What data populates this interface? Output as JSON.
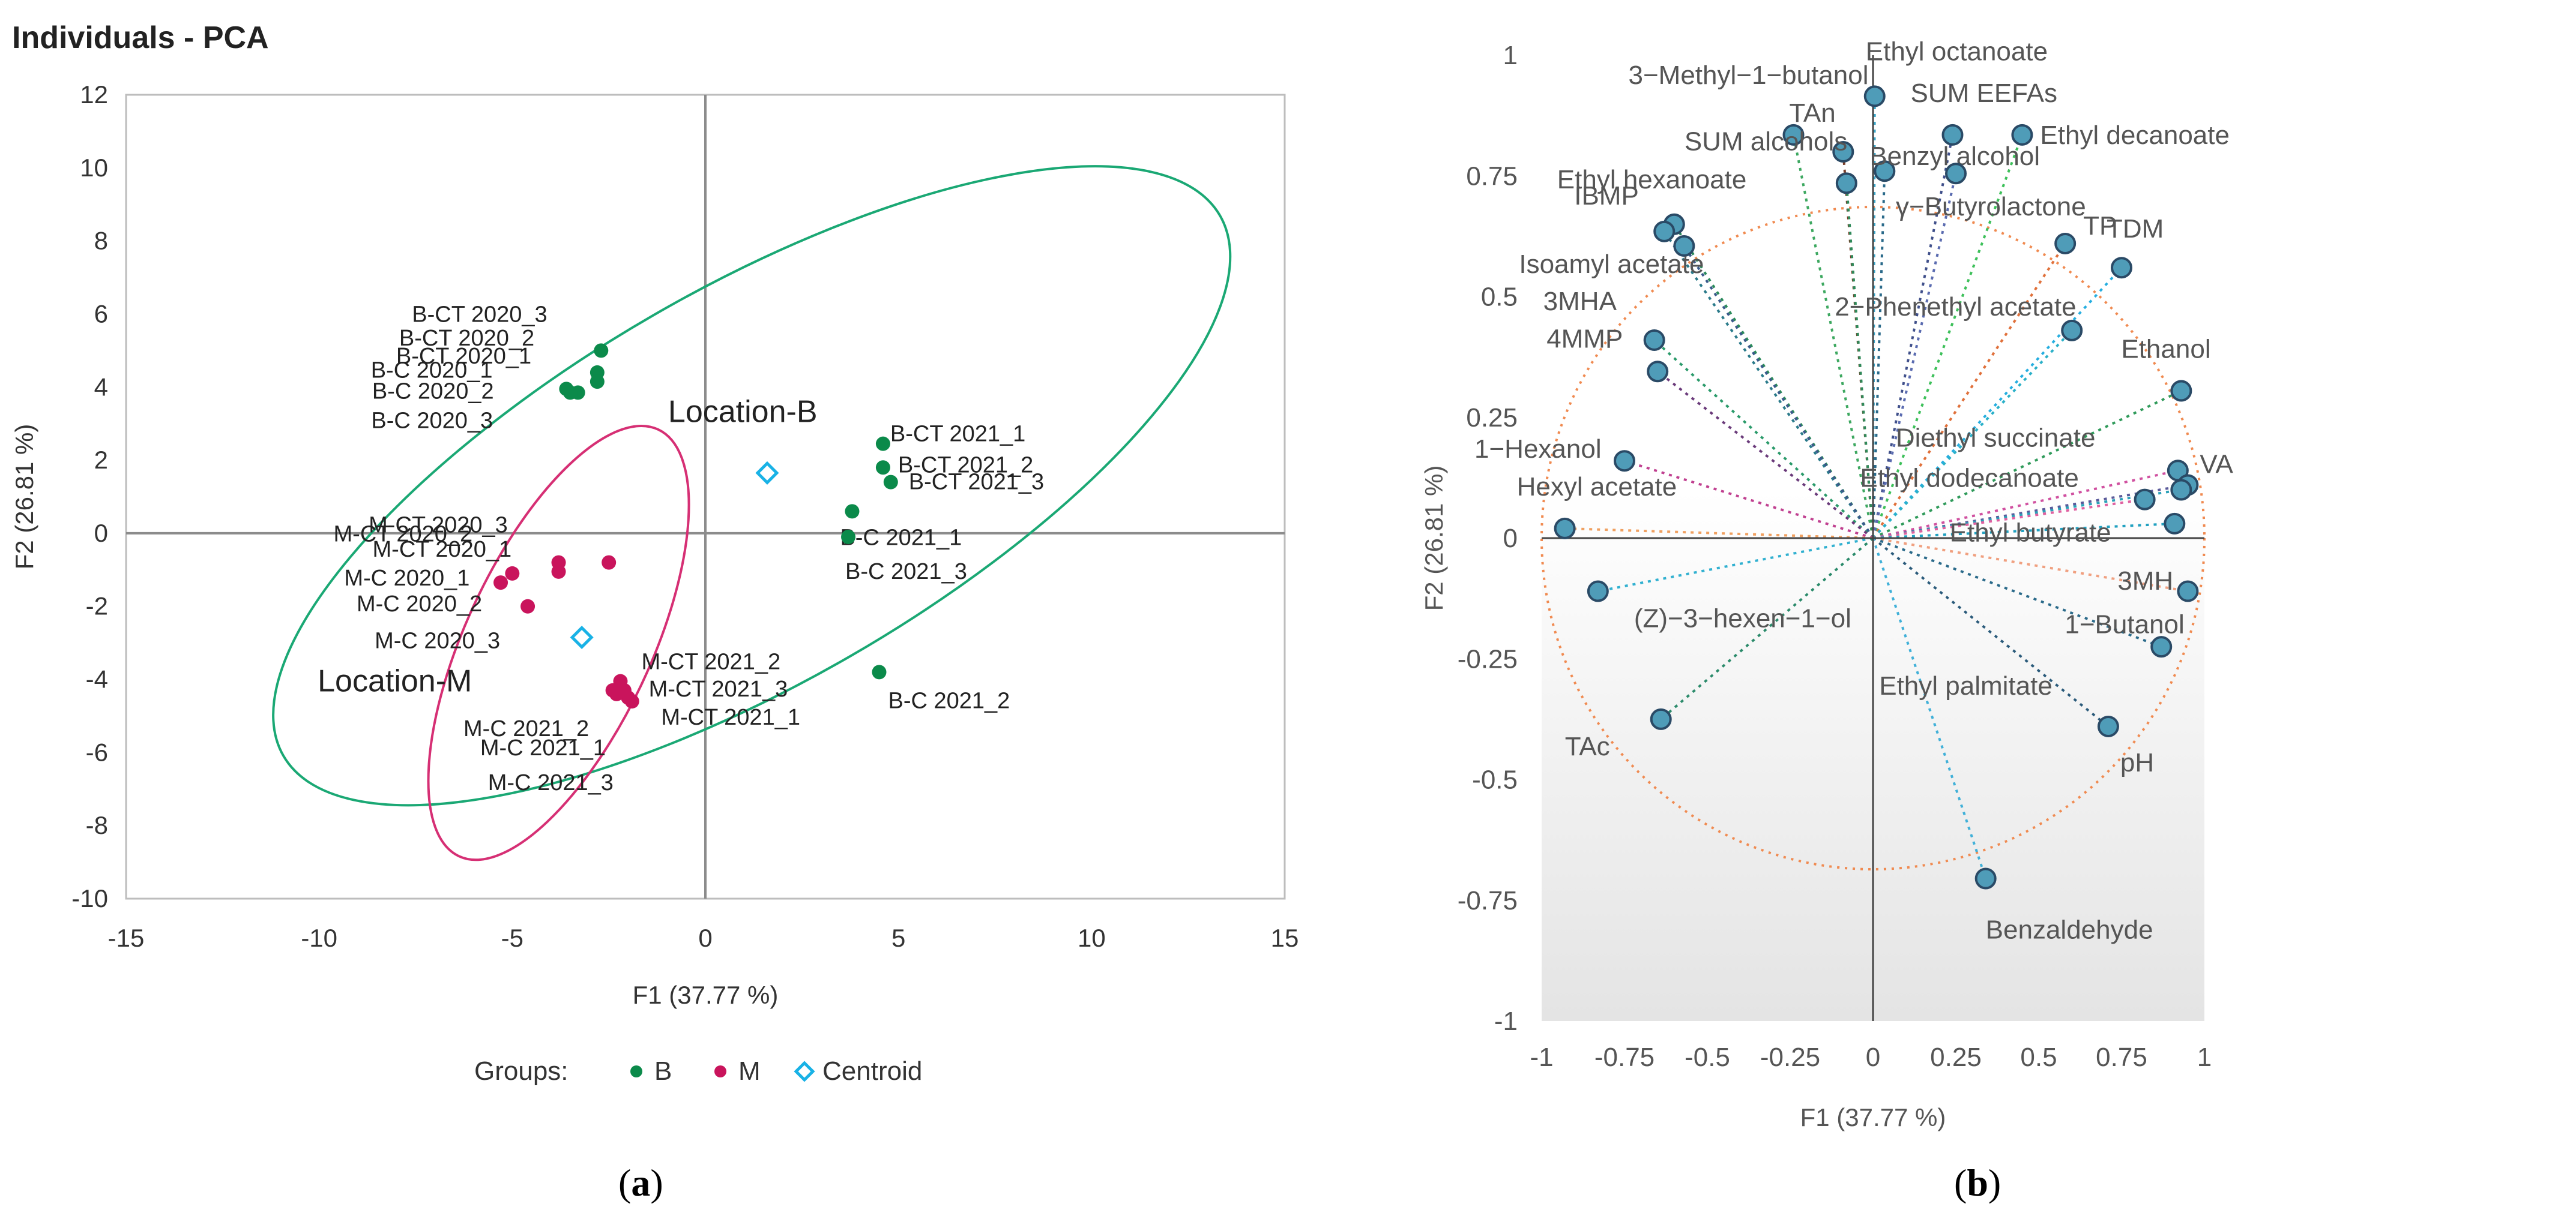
{
  "captions": {
    "a": "a",
    "b": "b"
  },
  "chart_data": [
    {
      "type": "scatter",
      "title": "Individuals - PCA",
      "xlabel": "F1 (37.77 %)",
      "ylabel": "F2 (26.81 %)",
      "xlim": [
        -15,
        15
      ],
      "ylim": [
        -10,
        12
      ],
      "xticks": [
        -15,
        -10,
        -5,
        0,
        5,
        10,
        15
      ],
      "yticks": [
        -10,
        -8,
        -6,
        -4,
        -2,
        0,
        2,
        4,
        6,
        8,
        10,
        12
      ],
      "grid": false,
      "legend": {
        "title": "Groups:",
        "position": "bottom",
        "entries": [
          {
            "name": "B",
            "color": "#0b8a4a",
            "marker": "dot"
          },
          {
            "name": "M",
            "color": "#c9145c",
            "marker": "dot"
          },
          {
            "name": "Centroid",
            "color": "#19b2e6",
            "marker": "diamond"
          }
        ]
      },
      "series": [
        {
          "name": "B",
          "color": "#0b8a4a",
          "points": [
            {
              "label": "B-CT 2020_3",
              "x": -2.7,
              "y": 5.0
            },
            {
              "label": "B-CT 2020_2",
              "x": -2.8,
              "y": 4.4
            },
            {
              "label": "B-CT 2020_1",
              "x": -2.8,
              "y": 4.15
            },
            {
              "label": "B-C 2020_1",
              "x": -3.3,
              "y": 3.85
            },
            {
              "label": "B-C 2020_2",
              "x": -3.5,
              "y": 3.85
            },
            {
              "label": "B-C 2020_3",
              "x": -3.6,
              "y": 3.95
            },
            {
              "label": "B-CT 2021_1",
              "x": 4.6,
              "y": 2.45
            },
            {
              "label": "B-CT 2021_2",
              "x": 4.6,
              "y": 1.8
            },
            {
              "label": "B-CT 2021_3",
              "x": 4.8,
              "y": 1.4
            },
            {
              "label": "B-C 2021_1",
              "x": 3.8,
              "y": 0.6
            },
            {
              "label": "B-C 2021_3",
              "x": 3.7,
              "y": -0.1
            },
            {
              "label": "B-C 2021_2",
              "x": 4.5,
              "y": -3.8
            }
          ]
        },
        {
          "name": "M",
          "color": "#c9145c",
          "points": [
            {
              "label": "M-CT 2020_3",
              "x": -2.5,
              "y": -0.8
            },
            {
              "label": "M-CT 2020_2",
              "x": -3.8,
              "y": -0.8
            },
            {
              "label": "M-CT 2020_1",
              "x": -3.8,
              "y": -1.05
            },
            {
              "label": "M-C 2020_1",
              "x": -5.0,
              "y": -1.1
            },
            {
              "label": "M-C 2020_2",
              "x": -5.3,
              "y": -1.35
            },
            {
              "label": "M-C 2020_3",
              "x": -4.6,
              "y": -2.0
            },
            {
              "label": "M-CT 2021_2",
              "x": -2.2,
              "y": -4.05
            },
            {
              "label": "M-CT 2021_3",
              "x": -2.4,
              "y": -4.3
            },
            {
              "label": "M-CT 2021_1",
              "x": -2.0,
              "y": -4.5
            },
            {
              "label": "M-C 2021_2",
              "x": -2.3,
              "y": -4.4
            },
            {
              "label": "M-C 2021_1",
              "x": -2.1,
              "y": -4.3
            },
            {
              "label": "M-C 2021_3",
              "x": -1.9,
              "y": -4.6
            }
          ]
        },
        {
          "name": "Centroid",
          "color": "#19b2e6",
          "points": [
            {
              "label": "Location-B",
              "x": 1.6,
              "y": 1.65
            },
            {
              "label": "Location-M",
              "x": -3.2,
              "y": -2.85
            }
          ]
        }
      ],
      "ellipses": [
        {
          "name": "Location-B",
          "color": "#1aa874",
          "cx": 1.2,
          "cy": 1.3,
          "rx": 14.0,
          "ry": 5.1,
          "angle_deg": -30
        },
        {
          "name": "Location-M",
          "color": "#d62f74",
          "cx": -3.8,
          "cy": -3.0,
          "rx": 6.1,
          "ry": 2.4,
          "angle_deg": -65
        }
      ]
    },
    {
      "type": "scatter",
      "title": "",
      "xlabel": "F1 (37.77 %)",
      "ylabel": "F2 (26.81 %)",
      "xlim": [
        -1,
        1
      ],
      "ylim": [
        -1,
        1
      ],
      "xticks": [
        -1,
        -0.75,
        -0.5,
        -0.25,
        0,
        0.25,
        0.5,
        0.75,
        1
      ],
      "ytick_labels": [
        {
          "v": 1,
          "t": "1"
        },
        {
          "v": 0.75,
          "t": "0.75"
        },
        {
          "v": 0.5,
          "t": "0.5"
        },
        {
          "v": 0.25,
          "t": "0.25"
        },
        {
          "v": 0,
          "t": "0"
        },
        {
          "v": -0.25,
          "t": "-0.25"
        },
        {
          "v": -0.5,
          "t": "-0.5"
        },
        {
          "v": -0.75,
          "t": "-0.75"
        },
        {
          "v": -1,
          "t": "-1"
        }
      ],
      "xtick_labels": [
        "-1",
        "-0.75",
        "-0.5",
        "-0.25",
        "0",
        "0.25",
        "0.5",
        "0.75",
        "1"
      ],
      "circle": {
        "radius": 1,
        "color": "#f08a50"
      },
      "variables": [
        {
          "label": "Ethyl octanoate",
          "x": 0.005,
          "y": 0.915,
          "color": "#3aa6c8"
        },
        {
          "label": "3−Methyl−1−butanol",
          "x": -0.24,
          "y": 0.835,
          "color": "#3da860"
        },
        {
          "label": "TAn",
          "x": -0.09,
          "y": 0.8,
          "color": "#7a3f2a"
        },
        {
          "label": "SUM alcohols",
          "x": -0.08,
          "y": 0.735,
          "color": "#2f8a5a"
        },
        {
          "label": "Benzyl alcohol",
          "x": 0.035,
          "y": 0.76,
          "color": "#2a6a8a"
        },
        {
          "label": "SUM EEFAs",
          "x": 0.24,
          "y": 0.835,
          "color": "#3f4f8a"
        },
        {
          "label": "Ethyl decanoate",
          "x": 0.45,
          "y": 0.835,
          "color": "#3dc05a"
        },
        {
          "label": "γ−Butyrolactone",
          "x": 0.25,
          "y": 0.755,
          "color": "#5a6bb0"
        },
        {
          "label": "Ethyl hexanoate",
          "x": -0.6,
          "y": 0.65,
          "color": "#2a8a5a"
        },
        {
          "label": "IBMP",
          "x": -0.63,
          "y": 0.635,
          "color": "#2a7a8a"
        },
        {
          "label": "Isoamyl acetate",
          "x": -0.57,
          "y": 0.605,
          "color": "#3a5a8a"
        },
        {
          "label": "TP",
          "x": 0.58,
          "y": 0.61,
          "color": "#e0703a"
        },
        {
          "label": "TDM",
          "x": 0.75,
          "y": 0.56,
          "color": "#25aee0"
        },
        {
          "label": "2−Phenethyl acetate",
          "x": 0.6,
          "y": 0.43,
          "color": "#2ab0c8"
        },
        {
          "label": "3MHA",
          "x": -0.66,
          "y": 0.41,
          "color": "#2a9a6a"
        },
        {
          "label": "4MMP",
          "x": -0.65,
          "y": 0.345,
          "color": "#6a3a7a"
        },
        {
          "label": "Ethanol",
          "x": 0.93,
          "y": 0.305,
          "color": "#2f9a5a"
        },
        {
          "label": "1−Hexanol",
          "x": -0.75,
          "y": 0.16,
          "color": "#c04090"
        },
        {
          "label": "Diethyl succinate",
          "x": 0.92,
          "y": 0.14,
          "color": "#d050a0"
        },
        {
          "label": "VA",
          "x": 0.95,
          "y": 0.11,
          "color": "#5a5a9a"
        },
        {
          "label": "Ethyl dodecanoate",
          "x": 0.93,
          "y": 0.1,
          "color": "#2aa0b8"
        },
        {
          "label": "Ethyl butyrate",
          "x": 0.82,
          "y": 0.08,
          "color": "#e060a0"
        },
        {
          "label": "3MH",
          "x": 0.91,
          "y": 0.03,
          "color": "#20a0c0"
        },
        {
          "label": "Hexyl acetate",
          "x": -0.93,
          "y": 0.02,
          "color": "#f0a060"
        },
        {
          "label": "1−Butanol",
          "x": 0.95,
          "y": -0.11,
          "color": "#f0a080"
        },
        {
          "label": "(Z)−3−hexen−1−ol",
          "x": -0.83,
          "y": -0.11,
          "color": "#30b0d0"
        },
        {
          "label": "Ethyl palmitate",
          "x": 0.87,
          "y": -0.225,
          "color": "#2a6a8a"
        },
        {
          "label": "pH",
          "x": 0.71,
          "y": -0.39,
          "color": "#2a5a7a"
        },
        {
          "label": "TAc",
          "x": -0.64,
          "y": -0.375,
          "color": "#2a8a6a"
        },
        {
          "label": "Benzaldehyde",
          "x": 0.34,
          "y": -0.705,
          "color": "#40b0d8"
        }
      ]
    }
  ]
}
